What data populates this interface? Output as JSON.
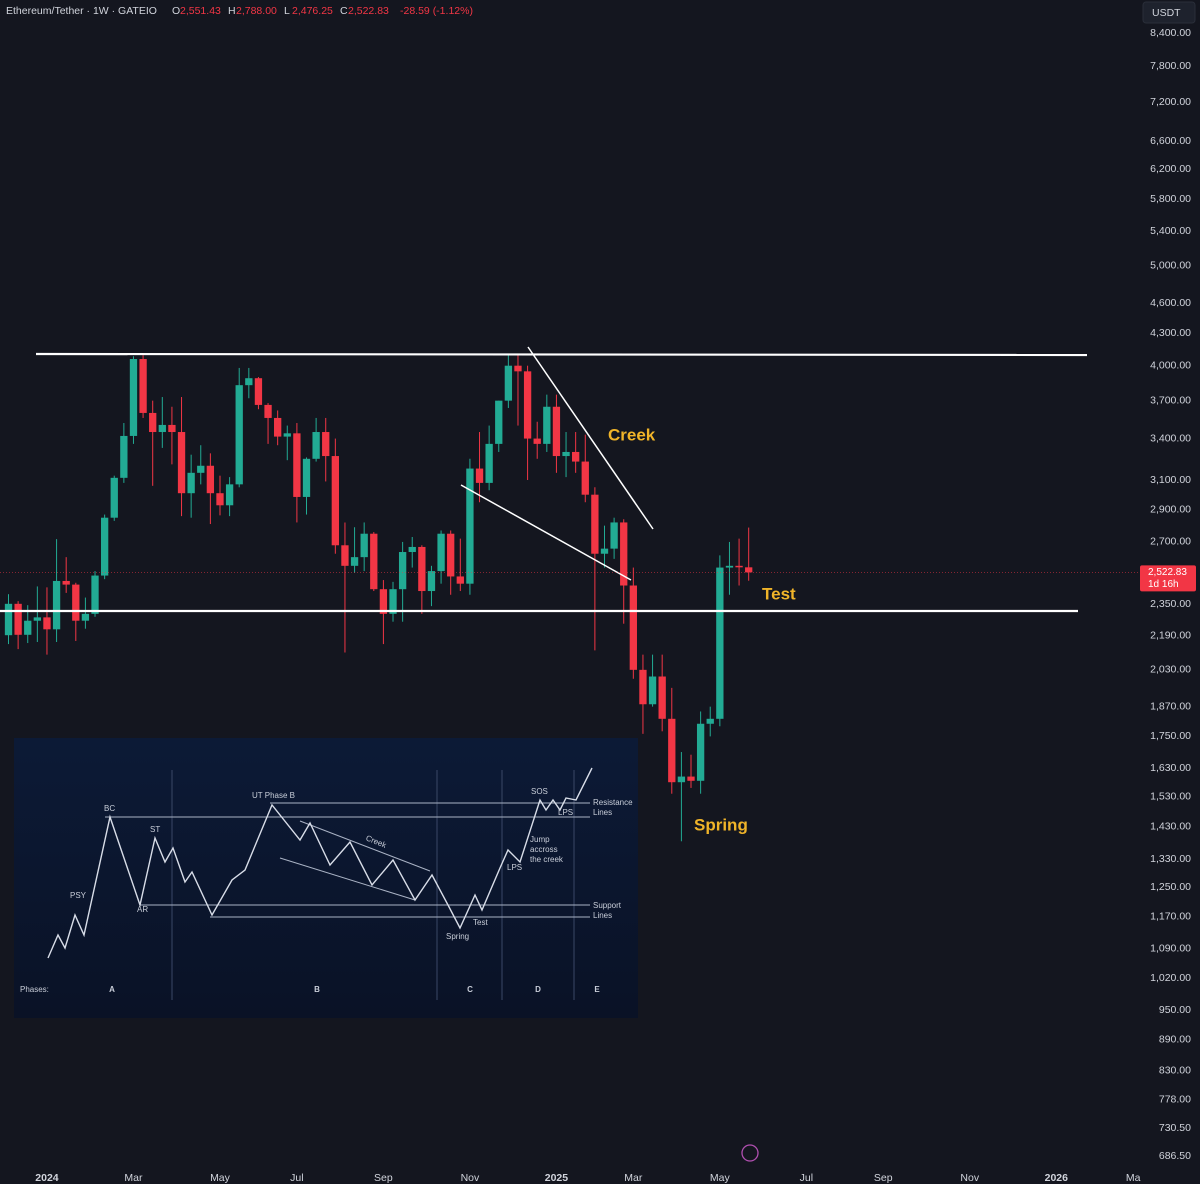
{
  "chart_data": {
    "type": "candlestick",
    "symbol": "Ethereum/Tether · 1W · GATEIO",
    "ohlc": [
      {
        "key": "O",
        "text": "2,551.43"
      },
      {
        "key": "H",
        "text": "2,788.00"
      },
      {
        "key": "L",
        "text": "2,476.25"
      },
      {
        "key": "C",
        "text": "2,522.83"
      }
    ],
    "change": "-28.59 (-1.12%)",
    "currency": "USDT",
    "log_scale": true,
    "grid": false,
    "up_color": "#22ab94",
    "down_color": "#f23645",
    "open": [
      2193,
      2352,
      2195,
      2265,
      2282,
      2222,
      2475,
      2455,
      2265,
      2300,
      2505,
      2850,
      3115,
      3420,
      4060,
      3600,
      3450,
      3505,
      3450,
      3010,
      3150,
      3200,
      3010,
      2930,
      3070,
      3830,
      3890,
      3665,
      3560,
      3415,
      3440,
      2985,
      3250,
      3450,
      3270,
      2680,
      2560,
      2610,
      2750,
      2430,
      2300,
      2430,
      2640,
      2670,
      2420,
      2530,
      2750,
      2500,
      2460,
      3180,
      3080,
      3360,
      3700,
      4000,
      3950,
      3400,
      3360,
      3650,
      3270,
      3300,
      3230,
      3000,
      2630,
      2660,
      2820,
      2450,
      2030,
      1880,
      2000,
      1820,
      1580,
      1600,
      1585,
      1800,
      1820,
      2550,
      2560,
      2551.43
    ],
    "high": [
      2403,
      2366,
      2345,
      2445,
      2440,
      2717,
      2610,
      2465,
      2385,
      2530,
      2870,
      3130,
      3520,
      4085,
      4095,
      3700,
      3730,
      3650,
      3730,
      3280,
      3350,
      3290,
      3130,
      3120,
      3980,
      3980,
      3900,
      3680,
      3620,
      3500,
      3520,
      3260,
      3560,
      3560,
      3400,
      2820,
      2790,
      2820,
      2760,
      2480,
      2470,
      2700,
      2730,
      2680,
      2560,
      2770,
      2770,
      2720,
      3250,
      3450,
      3500,
      3700,
      4100,
      4110,
      4000,
      3530,
      3750,
      3750,
      3450,
      3450,
      3430,
      3050,
      2800,
      2850,
      2840,
      2550,
      2100,
      2100,
      2100,
      1950,
      1690,
      1680,
      1850,
      1870,
      2620,
      2700,
      2720,
      2788
    ],
    "low": [
      2150,
      2126,
      2155,
      2160,
      2100,
      2160,
      2410,
      2165,
      2225,
      2285,
      2485,
      2830,
      3080,
      3360,
      3560,
      3060,
      3330,
      3210,
      2860,
      2850,
      3070,
      2810,
      2865,
      2860,
      3050,
      3720,
      3630,
      3360,
      3350,
      3240,
      2820,
      2870,
      3230,
      3090,
      2630,
      2110,
      2520,
      2530,
      2420,
      2150,
      2260,
      2260,
      2550,
      2300,
      2340,
      2460,
      2400,
      2420,
      2400,
      2950,
      3030,
      3300,
      3640,
      3500,
      3100,
      3250,
      3300,
      3150,
      3120,
      3150,
      2950,
      2120,
      2550,
      2600,
      2250,
      1990,
      1760,
      1870,
      1770,
      1540,
      1385,
      1560,
      1540,
      1750,
      1790,
      2400,
      2450,
      2476.25
    ],
    "close": [
      2352,
      2195,
      2265,
      2282,
      2222,
      2475,
      2455,
      2265,
      2300,
      2505,
      2850,
      3115,
      3420,
      4060,
      3600,
      3450,
      3505,
      3450,
      3010,
      3150,
      3200,
      3010,
      2930,
      3070,
      3830,
      3890,
      3665,
      3560,
      3415,
      3440,
      2985,
      3250,
      3450,
      3270,
      2680,
      2560,
      2610,
      2750,
      2430,
      2300,
      2430,
      2640,
      2670,
      2420,
      2530,
      2750,
      2500,
      2460,
      3180,
      3080,
      3360,
      3700,
      4000,
      3950,
      3400,
      3360,
      3650,
      3270,
      3300,
      3230,
      3000,
      2630,
      2660,
      2820,
      2450,
      2030,
      1880,
      2000,
      1820,
      1580,
      1600,
      1585,
      1800,
      1820,
      2550,
      2560,
      2551.43,
      2522.83
    ],
    "ylim": [
      686.5,
      8400
    ],
    "yticks": [
      {
        "value": 8400,
        "label": "8,400.00"
      },
      {
        "value": 7800,
        "label": "7,800.00"
      },
      {
        "value": 7200,
        "label": "7,200.00"
      },
      {
        "value": 6600,
        "label": "6,600.00"
      },
      {
        "value": 6200,
        "label": "6,200.00"
      },
      {
        "value": 5800,
        "label": "5,800.00"
      },
      {
        "value": 5400,
        "label": "5,400.00"
      },
      {
        "value": 5000,
        "label": "5,000.00"
      },
      {
        "value": 4600,
        "label": "4,600.00"
      },
      {
        "value": 4300,
        "label": "4,300.00"
      },
      {
        "value": 4000,
        "label": "4,000.00"
      },
      {
        "value": 3700,
        "label": "3,700.00"
      },
      {
        "value": 3400,
        "label": "3,400.00"
      },
      {
        "value": 3100,
        "label": "3,100.00"
      },
      {
        "value": 2900,
        "label": "2,900.00"
      },
      {
        "value": 2700,
        "label": "2,700.00"
      },
      {
        "value": 2350,
        "label": "2,350.00"
      },
      {
        "value": 2190,
        "label": "2,190.00"
      },
      {
        "value": 2030,
        "label": "2,030.00"
      },
      {
        "value": 1870,
        "label": "1,870.00"
      },
      {
        "value": 1750,
        "label": "1,750.00"
      },
      {
        "value": 1630,
        "label": "1,630.00"
      },
      {
        "value": 1530,
        "label": "1,530.00"
      },
      {
        "value": 1430,
        "label": "1,430.00"
      },
      {
        "value": 1330,
        "label": "1,330.00"
      },
      {
        "value": 1250,
        "label": "1,250.00"
      },
      {
        "value": 1170,
        "label": "1,170.00"
      },
      {
        "value": 1090,
        "label": "1,090.00"
      },
      {
        "value": 1020,
        "label": "1,020.00"
      },
      {
        "value": 950,
        "label": "950.00"
      },
      {
        "value": 890,
        "label": "890.00"
      },
      {
        "value": 830,
        "label": "830.00"
      },
      {
        "value": 778,
        "label": "778.00"
      },
      {
        "value": 730.5,
        "label": "730.50"
      },
      {
        "value": 686.5,
        "label": "686.50"
      }
    ],
    "xlim": [
      -0.885,
      117.5
    ],
    "xticks": [
      {
        "value": 4,
        "label": "2024"
      },
      {
        "value": 13,
        "label": "Mar"
      },
      {
        "value": 22,
        "label": "May"
      },
      {
        "value": 30,
        "label": "Jul"
      },
      {
        "value": 39,
        "label": "Sep"
      },
      {
        "value": 48,
        "label": "Nov"
      },
      {
        "value": 57,
        "label": "2025"
      },
      {
        "value": 65,
        "label": "Mar"
      },
      {
        "value": 74,
        "label": "May"
      },
      {
        "value": 83,
        "label": "Jul"
      },
      {
        "value": 91,
        "label": "Sep"
      },
      {
        "value": 100,
        "label": "Nov"
      },
      {
        "value": 109,
        "label": "2026"
      },
      {
        "value": 117,
        "label": "Ma"
      }
    ],
    "price_line": {
      "value": 2522.83,
      "label": "2,522.83",
      "countdown": "1d 16h"
    },
    "annotations": [
      "Creek",
      "Test",
      "Spring"
    ],
    "inset": {
      "events": [
        "BC",
        "PSY",
        "ST",
        "AR",
        "UT Phase B",
        "Creek",
        "SOS",
        "LPS",
        "Jump",
        "accross",
        "the creek",
        "LPS",
        "Test",
        "Spring"
      ],
      "resistance": [
        "Resistance",
        "Lines"
      ],
      "support": [
        "Support",
        "Lines"
      ],
      "phases_label": "Phases:",
      "phases": [
        "A",
        "B",
        "C",
        "D",
        "E"
      ]
    }
  }
}
